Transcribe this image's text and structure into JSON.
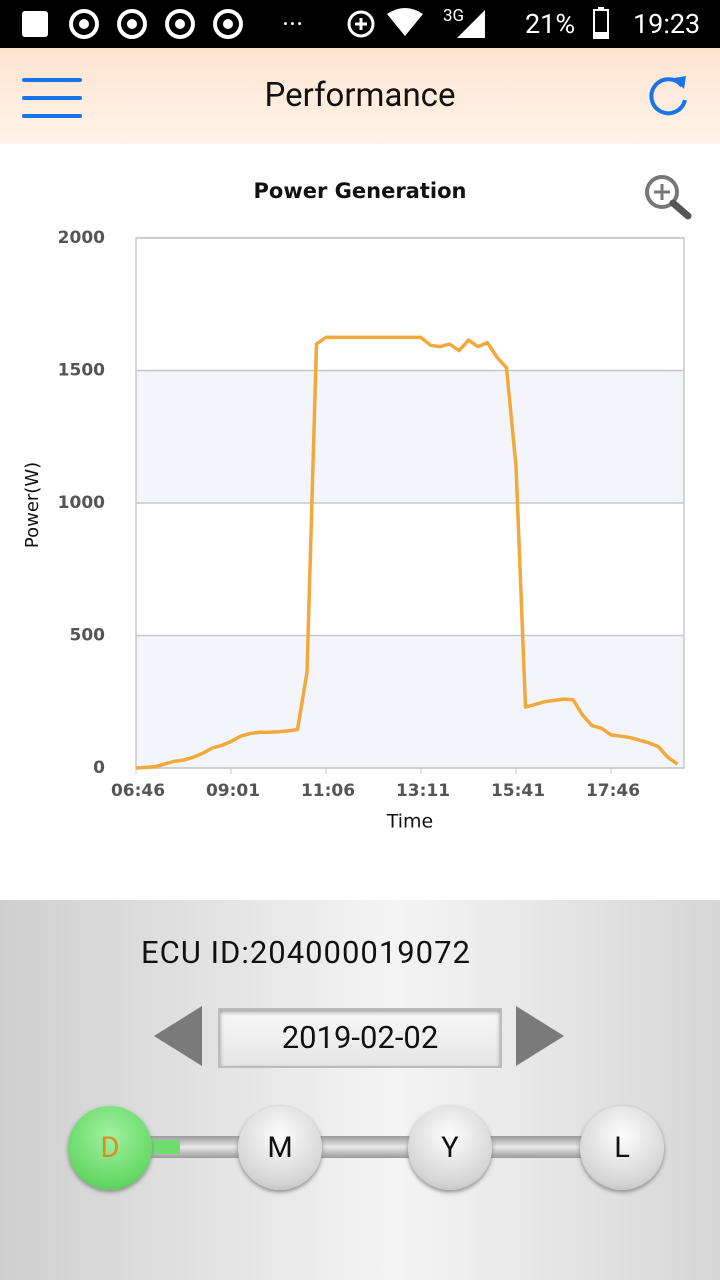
{
  "status_bar": {
    "dots": "···",
    "network": "3G",
    "battery": "21%",
    "time": "19:23"
  },
  "header": {
    "title": "Performance"
  },
  "chart_data": {
    "type": "line",
    "title": "Power Generation",
    "x_label": "Time",
    "y_label": "Power(W)",
    "categories": [
      "06:46",
      null,
      null,
      null,
      null,
      null,
      null,
      null,
      null,
      null,
      "09:01",
      null,
      null,
      null,
      null,
      null,
      null,
      null,
      null,
      null,
      "11:06",
      null,
      null,
      null,
      null,
      null,
      null,
      null,
      null,
      null,
      "13:11",
      null,
      null,
      null,
      null,
      null,
      null,
      null,
      null,
      null,
      "15:41",
      null,
      null,
      null,
      null,
      null,
      null,
      null,
      null,
      null,
      "17:46",
      null,
      null,
      null,
      null,
      null,
      null,
      null
    ],
    "values": [
      0,
      2,
      5,
      15,
      25,
      30,
      40,
      55,
      75,
      85,
      100,
      120,
      130,
      135,
      135,
      137,
      140,
      145,
      360,
      1600,
      1625,
      1625,
      1625,
      1625,
      1625,
      1625,
      1625,
      1625,
      1625,
      1625,
      1625,
      1595,
      1590,
      1600,
      1575,
      1615,
      1590,
      1605,
      1550,
      1510,
      1140,
      230,
      240,
      250,
      255,
      260,
      258,
      200,
      160,
      150,
      125,
      120,
      115,
      105,
      95,
      80,
      40,
      15
    ],
    "color": "#f2a93b",
    "ylim": [
      0,
      2000
    ],
    "yticks": [
      0,
      500,
      1000,
      1500,
      2000
    ],
    "grid": true
  },
  "device": {
    "ecu_id": "ECU ID:204000019072",
    "date": "2019-02-02"
  },
  "range_buttons": [
    "D",
    "M",
    "Y",
    "L"
  ]
}
